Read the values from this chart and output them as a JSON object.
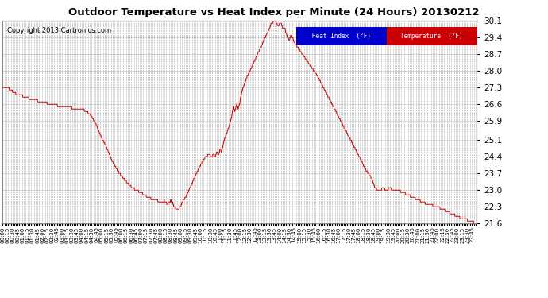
{
  "title": "Outdoor Temperature vs Heat Index per Minute (24 Hours) 20130212",
  "copyright": "Copyright 2013 Cartronics.com",
  "legend_heat": "Heat Index  (°F)",
  "legend_temp": "Temperature  (°F)",
  "ylim": [
    21.6,
    30.1
  ],
  "yticks": [
    21.6,
    22.3,
    23.0,
    23.7,
    24.4,
    25.1,
    25.9,
    26.6,
    27.3,
    28.0,
    28.7,
    29.4,
    30.1
  ],
  "bg_color": "#ffffff",
  "plot_bg_color": "#ffffff",
  "grid_color": "#aaaaaa",
  "line_color": "#cc0000",
  "title_fontsize": 11,
  "copyright_fontsize": 6.5,
  "legend_heat_bg": "#0000cc",
  "legend_temp_bg": "#cc0000"
}
